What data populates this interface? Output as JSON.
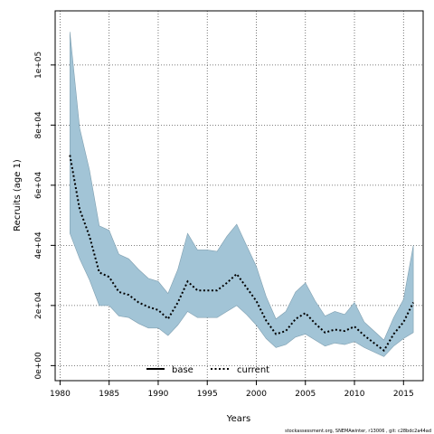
{
  "chart_data": {
    "type": "area",
    "title": "",
    "xlabel": "Years",
    "ylabel": "Recruits (age 1)",
    "xlim": [
      1979.5,
      2017
    ],
    "ylim": [
      -5000,
      118000
    ],
    "x_ticks": [
      1980,
      1985,
      1990,
      1995,
      2000,
      2005,
      2010,
      2015
    ],
    "y_ticks": [
      0,
      20000,
      40000,
      60000,
      80000,
      100000
    ],
    "y_tick_labels": [
      "0e+00",
      "2e+04",
      "4e+04",
      "6e+04",
      "8e+04",
      "1e+05"
    ],
    "grid": true,
    "band_color": "#a2c4d6",
    "legend": {
      "position": "bottom-center",
      "entries": [
        {
          "label": "base",
          "style": "solid",
          "color": "#000000"
        },
        {
          "label": "current",
          "style": "dotted",
          "color": "#000000"
        }
      ]
    },
    "x": [
      1981,
      1982,
      1983,
      1984,
      1985,
      1986,
      1987,
      1988,
      1989,
      1990,
      1991,
      1992,
      1993,
      1994,
      1995,
      1996,
      1997,
      1998,
      1999,
      2000,
      2001,
      2002,
      2003,
      2004,
      2005,
      2006,
      2007,
      2008,
      2009,
      2010,
      2011,
      2012,
      2013,
      2014,
      2015,
      2016
    ],
    "series": [
      {
        "name": "current",
        "values": [
          70000,
          52000,
          43000,
          31000,
          29500,
          24500,
          23500,
          21000,
          19500,
          18500,
          15500,
          21000,
          28000,
          25000,
          25000,
          25000,
          27500,
          30500,
          26000,
          21500,
          15000,
          10500,
          11500,
          15500,
          17500,
          14000,
          11000,
          12000,
          11500,
          13000,
          10000,
          7500,
          5000,
          10500,
          14500,
          21000
        ]
      },
      {
        "name": "upper",
        "values": [
          111000,
          79000,
          65000,
          46500,
          45000,
          37000,
          35500,
          32000,
          29000,
          28000,
          24000,
          32000,
          44000,
          38500,
          38500,
          38000,
          43000,
          47000,
          40000,
          33000,
          23000,
          15500,
          18000,
          24500,
          27500,
          21500,
          16500,
          18000,
          17000,
          21000,
          14500,
          11500,
          8500,
          16000,
          22000,
          40000
        ]
      },
      {
        "name": "lower",
        "values": [
          44000,
          35500,
          28500,
          20000,
          20000,
          16500,
          16000,
          14000,
          12500,
          12500,
          10000,
          13500,
          18000,
          16000,
          16000,
          16000,
          18000,
          20000,
          17000,
          13500,
          9000,
          6000,
          7000,
          9500,
          10500,
          8500,
          6500,
          7500,
          7000,
          8000,
          6000,
          4500,
          3000,
          6500,
          9000,
          11000
        ]
      }
    ]
  },
  "footer_text": "stockassessment.org, SNEMAwinter, r13006 ,  git: c28bdc2a44ad"
}
